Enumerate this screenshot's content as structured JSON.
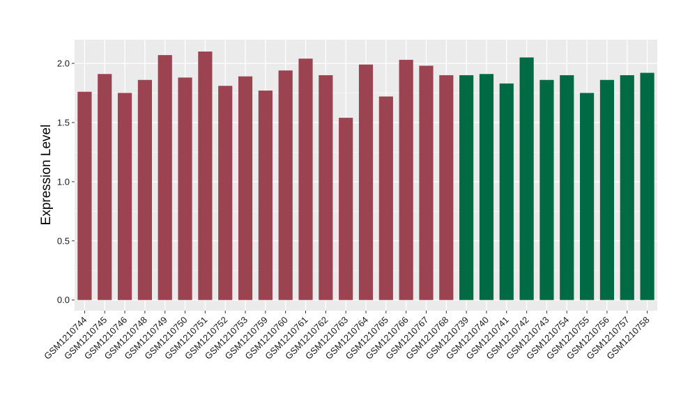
{
  "chart_data": {
    "type": "bar",
    "title": "",
    "xlabel": "",
    "ylabel": "Expression Level",
    "ylim": [
      -0.09,
      2.2
    ],
    "yticks": [
      0.0,
      0.5,
      1.0,
      1.5,
      2.0
    ],
    "ytick_labels": [
      "0.0",
      "0.5",
      "1.0",
      "1.5",
      "2.0"
    ],
    "grid": true,
    "background": "#EBEBEB",
    "categories": [
      "GSM1210744",
      "GSM1210745",
      "GSM1210746",
      "GSM1210748",
      "GSM1210749",
      "GSM1210750",
      "GSM1210751",
      "GSM1210752",
      "GSM1210753",
      "GSM1210759",
      "GSM1210760",
      "GSM1210761",
      "GSM1210762",
      "GSM1210763",
      "GSM1210764",
      "GSM1210765",
      "GSM1210766",
      "GSM1210767",
      "GSM1210768",
      "GSM1210739",
      "GSM1210740",
      "GSM1210741",
      "GSM1210742",
      "GSM1210743",
      "GSM1210754",
      "GSM1210755",
      "GSM1210756",
      "GSM1210757",
      "GSM1210758"
    ],
    "values": [
      1.76,
      1.91,
      1.75,
      1.86,
      2.07,
      1.88,
      2.1,
      1.81,
      1.89,
      1.77,
      1.94,
      2.04,
      1.9,
      1.54,
      1.99,
      1.72,
      2.03,
      1.98,
      1.9,
      1.9,
      1.91,
      1.83,
      2.05,
      1.86,
      1.9,
      1.75,
      1.86,
      1.9,
      1.92
    ],
    "colors": [
      "#9B4350",
      "#9B4350",
      "#9B4350",
      "#9B4350",
      "#9B4350",
      "#9B4350",
      "#9B4350",
      "#9B4350",
      "#9B4350",
      "#9B4350",
      "#9B4350",
      "#9B4350",
      "#9B4350",
      "#9B4350",
      "#9B4350",
      "#9B4350",
      "#9B4350",
      "#9B4350",
      "#9B4350",
      "#006A45",
      "#006A45",
      "#006A45",
      "#006A45",
      "#006A45",
      "#006A45",
      "#006A45",
      "#006A45",
      "#006A45",
      "#006A45"
    ]
  }
}
